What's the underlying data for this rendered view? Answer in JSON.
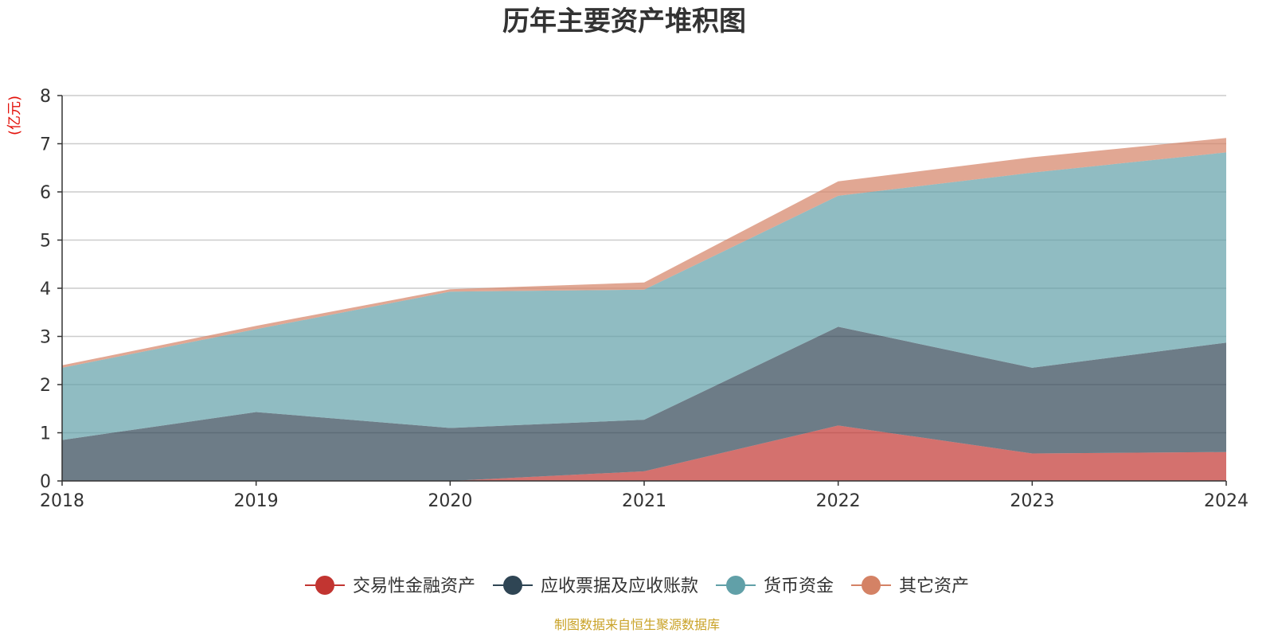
{
  "chart_data": {
    "type": "area",
    "stacked": true,
    "title": "历年主要资产堆积图",
    "unit_label": "(亿元)",
    "x": [
      "2018",
      "2019",
      "2020",
      "2021",
      "2022",
      "2023",
      "2024"
    ],
    "ylim": [
      0,
      8
    ],
    "yticks": [
      "0",
      "1",
      "2",
      "3",
      "4",
      "5",
      "6",
      "7",
      "8"
    ],
    "grid": true,
    "legend_position": "bottom",
    "series": [
      {
        "name": "交易性金融资产",
        "color": "#c23531",
        "values": [
          0,
          0,
          0,
          0.2,
          1.15,
          0.57,
          0.6
        ]
      },
      {
        "name": "应收票据及应收账款",
        "color": "#2f4554",
        "values": [
          0.85,
          1.43,
          1.1,
          1.07,
          2.05,
          1.78,
          2.27
        ]
      },
      {
        "name": "货币资金",
        "color": "#61a0a8",
        "values": [
          1.5,
          1.72,
          2.83,
          2.7,
          2.72,
          4.05,
          3.95
        ]
      },
      {
        "name": "其它资产",
        "color": "#d48265",
        "values": [
          0.05,
          0.07,
          0.05,
          0.15,
          0.3,
          0.32,
          0.3
        ]
      }
    ],
    "source": "制图数据来自恒生聚源数据库"
  }
}
